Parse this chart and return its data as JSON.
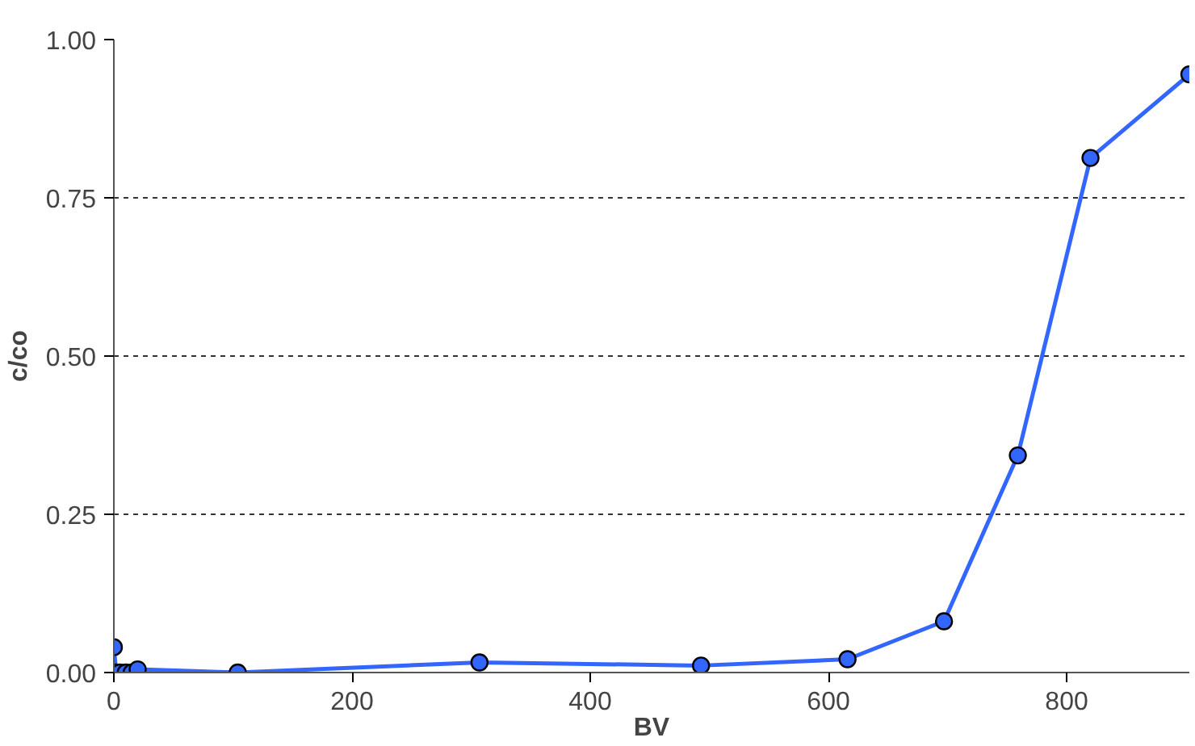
{
  "chart_data": {
    "type": "line",
    "xlabel": "BV",
    "ylabel": "c/co",
    "x": [
      0,
      2,
      5,
      10,
      15,
      20,
      104,
      307,
      493,
      616,
      697,
      759,
      820,
      903
    ],
    "series": [
      {
        "color": "#3366ff",
        "values": [
          0.04,
          0.0,
          0.0,
          0.0,
          0.0,
          0.005,
          0.0,
          0.016,
          0.011,
          0.021,
          0.081,
          0.343,
          0.813,
          0.945
        ]
      }
    ],
    "xlim": [
      0,
      903
    ],
    "ylim": [
      0,
      1
    ],
    "xticks": [
      0,
      200,
      400,
      600,
      800
    ],
    "yticks": [
      {
        "value": 0,
        "label": "0.00"
      },
      {
        "value": 0.25,
        "label": "0.25"
      },
      {
        "value": 0.5,
        "label": "0.50"
      },
      {
        "value": 0.75,
        "label": "0.75"
      },
      {
        "value": 1,
        "label": "1.00"
      }
    ],
    "grid": "y",
    "marker": "circle",
    "line_style": "solid"
  }
}
